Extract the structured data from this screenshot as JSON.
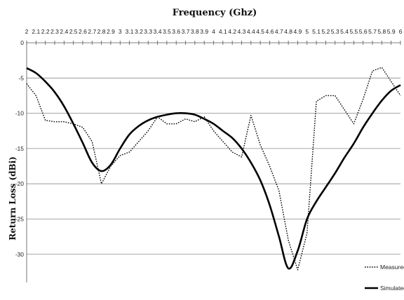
{
  "chart_data": {
    "type": "line",
    "title": "Frequency (Ghz)",
    "xlabel": "Frequency (Ghz)",
    "ylabel": "Return Loss (dBi)",
    "x_ticks": [
      "2",
      "2.1",
      "2.2",
      "2.3",
      "2.4",
      "2.5",
      "2.6",
      "2.7",
      "2.8",
      "2.9",
      "3",
      "3.1",
      "3.2",
      "3.3",
      "3.4",
      "3.5",
      "3.6",
      "3.7",
      "3.8",
      "3.9",
      "4",
      "4.1",
      "4.2",
      "4.3",
      "4.4",
      "4.5",
      "4.6",
      "4.7",
      "4.8",
      "4.9",
      "5",
      "5.1",
      "5.2",
      "5.3",
      "5.4",
      "5.5",
      "5.6",
      "5.7",
      "5.8",
      "5.9",
      "6"
    ],
    "y_ticks": [
      "0",
      "-5",
      "-10",
      "-15",
      "-20",
      "-25",
      "-30"
    ],
    "xlim": [
      2,
      6
    ],
    "ylim": [
      -34,
      0
    ],
    "x_axis_position": "top",
    "grid": "horizontal",
    "legend_position": "bottom-right",
    "series": [
      {
        "name": "Measured",
        "style": "dotted",
        "color": "#000000",
        "x": [
          2,
          2.1,
          2.2,
          2.3,
          2.4,
          2.5,
          2.6,
          2.7,
          2.8,
          2.9,
          3,
          3.1,
          3.2,
          3.3,
          3.4,
          3.5,
          3.6,
          3.7,
          3.8,
          3.9,
          4,
          4.1,
          4.2,
          4.3,
          4.4,
          4.5,
          4.6,
          4.7,
          4.8,
          4.9,
          5,
          5.1,
          5.2,
          5.3,
          5.4,
          5.5,
          5.6,
          5.7,
          5.8,
          5.9,
          6
        ],
        "y": [
          -5.8,
          -7.5,
          -11,
          -11.2,
          -11.2,
          -11.5,
          -12,
          -14,
          -20,
          -17.5,
          -16,
          -15.5,
          -14,
          -12.5,
          -10.5,
          -11.5,
          -11.5,
          -10.8,
          -11.2,
          -10.5,
          -12.5,
          -14,
          -15.5,
          -16.2,
          -10.3,
          -14.5,
          -17.5,
          -21,
          -28,
          -32.2,
          -27,
          -8.3,
          -7.5,
          -7.5,
          -9.5,
          -11.5,
          -8,
          -4,
          -3.5,
          -5.5,
          -7.5
        ]
      },
      {
        "name": "Simulated",
        "style": "solid",
        "color": "#000000",
        "x": [
          2,
          2.1,
          2.2,
          2.3,
          2.4,
          2.5,
          2.6,
          2.7,
          2.8,
          2.9,
          3,
          3.1,
          3.2,
          3.3,
          3.4,
          3.5,
          3.6,
          3.7,
          3.8,
          3.9,
          4,
          4.1,
          4.2,
          4.3,
          4.4,
          4.5,
          4.6,
          4.7,
          4.8,
          4.9,
          5,
          5.1,
          5.2,
          5.3,
          5.4,
          5.5,
          5.6,
          5.7,
          5.8,
          5.9,
          6
        ],
        "y": [
          -3.6,
          -4.3,
          -5.5,
          -7,
          -9,
          -11.5,
          -14.2,
          -17,
          -18.2,
          -17.3,
          -15,
          -13,
          -11.8,
          -11,
          -10.5,
          -10.2,
          -10,
          -10,
          -10.2,
          -10.8,
          -11.5,
          -12.5,
          -13.5,
          -15,
          -17,
          -19.5,
          -23,
          -27.5,
          -32,
          -29.5,
          -25,
          -22.5,
          -20.5,
          -18.5,
          -16.3,
          -14.3,
          -12,
          -10,
          -8.2,
          -6.8,
          -6
        ]
      }
    ]
  }
}
